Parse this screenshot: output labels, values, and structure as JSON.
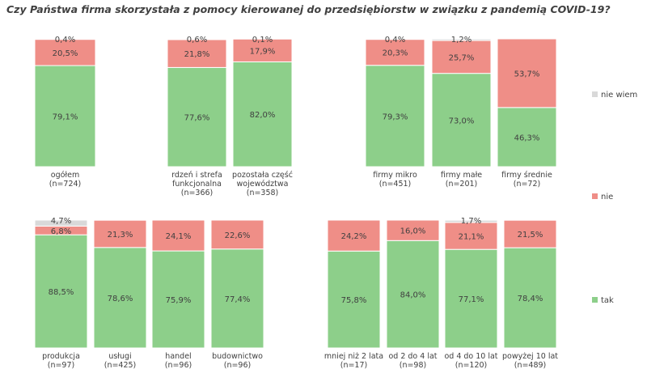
{
  "title": "Czy Państwa firma skorzystała z pomocy kierowanej do przedsiębiorstw w związku z pandemią COVID-19?",
  "colors": {
    "tak": "#8dcf8a",
    "nie": "#ef8e87",
    "nie_wiem": "#d9d9d9"
  },
  "legend": [
    {
      "key": "nie_wiem",
      "label": "nie wiem"
    },
    {
      "key": "nie",
      "label": "nie"
    },
    {
      "key": "tak",
      "label": "tak"
    }
  ],
  "chart_data": {
    "type": "bar",
    "stacked": true,
    "normalized_percent": true,
    "series_order": [
      "tak",
      "nie",
      "nie_wiem"
    ],
    "series": [
      {
        "name": "tak",
        "key": "tak"
      },
      {
        "name": "nie",
        "key": "nie"
      },
      {
        "name": "nie wiem",
        "key": "nie_wiem"
      }
    ],
    "groups": [
      {
        "name": "top-left",
        "bars": [
          {
            "label": [
              "ogółem",
              "(n=724)"
            ],
            "tak": 79.1,
            "nie": 20.5,
            "nie_wiem": 0.4,
            "labels": {
              "tak": "79,1%",
              "nie": "20,5%",
              "nie_wiem": "0,4%"
            }
          }
        ]
      },
      {
        "name": "top-middle",
        "bars": [
          {
            "label": [
              "rdzeń i strefa",
              "funkcjonalna",
              "(n=366)"
            ],
            "tak": 77.6,
            "nie": 21.8,
            "nie_wiem": 0.6,
            "labels": {
              "tak": "77,6%",
              "nie": "21,8%",
              "nie_wiem": "0,6%"
            }
          },
          {
            "label": [
              "pozostała część",
              "województwa",
              "(n=358)"
            ],
            "tak": 82.0,
            "nie": 17.9,
            "nie_wiem": 0.1,
            "labels": {
              "tak": "82,0%",
              "nie": "17,9%",
              "nie_wiem": "0,1%"
            }
          }
        ]
      },
      {
        "name": "top-right",
        "bars": [
          {
            "label": [
              "firmy mikro",
              "(n=451)"
            ],
            "tak": 79.3,
            "nie": 20.3,
            "nie_wiem": 0.4,
            "labels": {
              "tak": "79,3%",
              "nie": "20,3%",
              "nie_wiem": "0,4%"
            }
          },
          {
            "label": [
              "firmy małe",
              "(n=201)"
            ],
            "tak": 73.0,
            "nie": 25.7,
            "nie_wiem": 1.2,
            "labels": {
              "tak": "73,0%",
              "nie": "25,7%",
              "nie_wiem": "1,2%"
            }
          },
          {
            "label": [
              "firmy średnie",
              "(n=72)"
            ],
            "tak": 46.3,
            "nie": 53.7,
            "nie_wiem": 0,
            "labels": {
              "tak": "46,3%",
              "nie": "53,7%",
              "nie_wiem": ""
            }
          }
        ]
      },
      {
        "name": "bottom-left",
        "bars": [
          {
            "label": [
              "produkcja",
              "(n=97)"
            ],
            "tak": 88.5,
            "nie": 6.8,
            "nie_wiem": 4.7,
            "labels": {
              "tak": "88,5%",
              "nie": "6,8%",
              "nie_wiem": "4,7%"
            }
          },
          {
            "label": [
              "usługi",
              "(n=425)"
            ],
            "tak": 78.6,
            "nie": 21.3,
            "nie_wiem": 0,
            "labels": {
              "tak": "78,6%",
              "nie": "21,3%",
              "nie_wiem": ""
            }
          },
          {
            "label": [
              "handel",
              "(n=96)"
            ],
            "tak": 75.9,
            "nie": 24.1,
            "nie_wiem": 0,
            "labels": {
              "tak": "75,9%",
              "nie": "24,1%",
              "nie_wiem": ""
            }
          },
          {
            "label": [
              "budownictwo",
              "(n=96)"
            ],
            "tak": 77.4,
            "nie": 22.6,
            "nie_wiem": 0,
            "labels": {
              "tak": "77,4%",
              "nie": "22,6%",
              "nie_wiem": ""
            }
          }
        ]
      },
      {
        "name": "bottom-right",
        "bars": [
          {
            "label": [
              "mniej niż 2 lata",
              "(n=17)"
            ],
            "tak": 75.8,
            "nie": 24.2,
            "nie_wiem": 0,
            "labels": {
              "tak": "75,8%",
              "nie": "24,2%",
              "nie_wiem": ""
            }
          },
          {
            "label": [
              "od 2 do 4 lat",
              "(n=98)"
            ],
            "tak": 84.0,
            "nie": 16.0,
            "nie_wiem": 0,
            "labels": {
              "tak": "84,0%",
              "nie": "16,0%",
              "nie_wiem": ""
            }
          },
          {
            "label": [
              "od 4 do 10 lat",
              "(n=120)"
            ],
            "tak": 77.1,
            "nie": 21.1,
            "nie_wiem": 1.7,
            "labels": {
              "tak": "77,1%",
              "nie": "21,1%",
              "nie_wiem": "1,7%"
            }
          },
          {
            "label": [
              "powyżej 10 lat",
              "(n=489)"
            ],
            "tak": 78.4,
            "nie": 21.5,
            "nie_wiem": 0,
            "labels": {
              "tak": "78,4%",
              "nie": "21,5%",
              "nie_wiem": ""
            }
          }
        ]
      }
    ]
  }
}
